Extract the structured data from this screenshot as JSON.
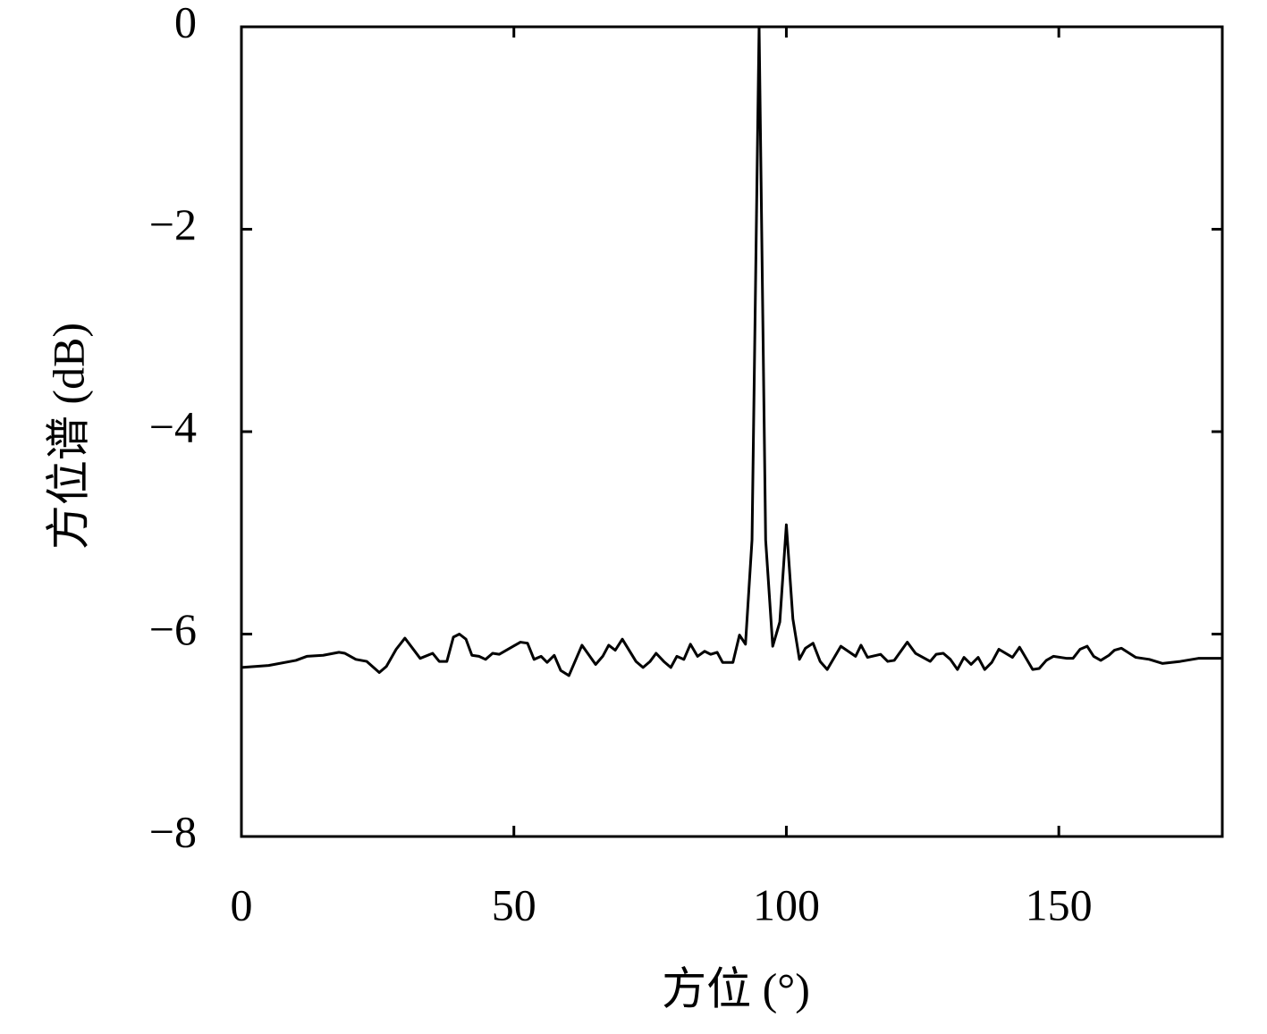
{
  "chart_data": {
    "type": "line",
    "xlabel": "方位 (°)",
    "ylabel": "方位谱 (dB)",
    "xlim": [
      0,
      180
    ],
    "ylim": [
      -8,
      0
    ],
    "xticks": [
      0,
      50,
      100,
      150
    ],
    "yticks": [
      0,
      {
        "value": -2,
        "label": "−2"
      },
      {
        "value": -4,
        "label": "−4"
      },
      {
        "value": -6,
        "label": "−6"
      },
      {
        "value": -8,
        "label": "−8"
      }
    ],
    "x": [
      0,
      5,
      10,
      12,
      15,
      17.9,
      19,
      21,
      23,
      25.3,
      26.6,
      28.4,
      30,
      32.8,
      35.1,
      36.3,
      37.7,
      38.9,
      40,
      41.2,
      42.3,
      43.6,
      44.8,
      46.1,
      47.3,
      49.9,
      51.2,
      52.5,
      53.7,
      55,
      56.1,
      57.4,
      58.6,
      60.1,
      62.5,
      65,
      66.3,
      67.4,
      68.6,
      69.9,
      72.4,
      73.7,
      75,
      76.1,
      77.5,
      78.8,
      79.9,
      81.2,
      82.4,
      83.7,
      85,
      86.1,
      87.3,
      88.3,
      90.2,
      91.4,
      92.5,
      93.7,
      95,
      96.2,
      97.5,
      98.8,
      100,
      101.2,
      102.4,
      103.5,
      104.9,
      106.2,
      107.5,
      110,
      112.7,
      113.7,
      114.9,
      117.3,
      118.6,
      119.8,
      122.2,
      123.7,
      126.4,
      127.5,
      128.8,
      130.1,
      131.4,
      132.6,
      133.9,
      135.2,
      136.4,
      137.7,
      139,
      141.5,
      142.8,
      145.2,
      146.4,
      147.7,
      149,
      151.5,
      152.6,
      153.9,
      155.2,
      156.4,
      157.7,
      159.2,
      160.2,
      161.5,
      164.1,
      166.6,
      169,
      172.3,
      175.6,
      180
    ],
    "series": [
      {
        "color": "#000000",
        "values": [
          -6.33,
          -6.31,
          -6.26,
          -6.22,
          -6.21,
          -6.18,
          -6.19,
          -6.25,
          -6.27,
          -6.38,
          -6.32,
          -6.15,
          -6.04,
          -6.24,
          -6.19,
          -6.27,
          -6.27,
          -6.03,
          -6.0,
          -6.05,
          -6.21,
          -6.22,
          -6.25,
          -6.19,
          -6.2,
          -6.12,
          -6.08,
          -6.09,
          -6.25,
          -6.22,
          -6.28,
          -6.21,
          -6.36,
          -6.41,
          -6.11,
          -6.3,
          -6.22,
          -6.11,
          -6.16,
          -6.05,
          -6.27,
          -6.33,
          -6.27,
          -6.19,
          -6.27,
          -6.33,
          -6.22,
          -6.25,
          -6.1,
          -6.22,
          -6.17,
          -6.2,
          -6.18,
          -6.28,
          -6.28,
          -6.01,
          -6.1,
          -5.07,
          0,
          -5.07,
          -6.12,
          -5.88,
          -4.92,
          -5.85,
          -6.25,
          -6.14,
          -6.09,
          -6.27,
          -6.35,
          -6.12,
          -6.22,
          -6.11,
          -6.23,
          -6.2,
          -6.27,
          -6.26,
          -6.08,
          -6.19,
          -6.27,
          -6.2,
          -6.19,
          -6.25,
          -6.35,
          -6.23,
          -6.3,
          -6.23,
          -6.35,
          -6.28,
          -6.15,
          -6.23,
          -6.13,
          -6.35,
          -6.34,
          -6.26,
          -6.22,
          -6.24,
          -6.24,
          -6.15,
          -6.12,
          -6.22,
          -6.26,
          -6.21,
          -6.16,
          -6.14,
          -6.23,
          -6.25,
          -6.29,
          -6.27,
          -6.24,
          -6.24
        ]
      }
    ]
  }
}
